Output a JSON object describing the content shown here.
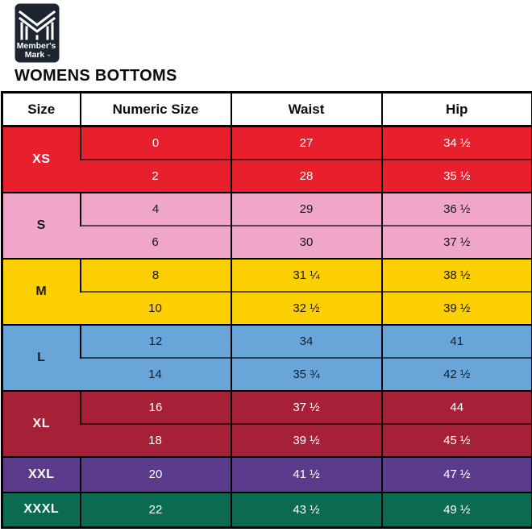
{
  "brand": {
    "name_line1": "Member's",
    "name_line2": "Mark",
    "trademark": "™",
    "logo_bg": "#1c2530",
    "logo_fg": "#ffffff"
  },
  "page_title": "WOMENS BOTTOMS",
  "size_table": {
    "headers": [
      "Size",
      "Numeric Size",
      "Waist",
      "Hip"
    ],
    "header_bg": "#ffffff",
    "border_color": "#000000",
    "groups": [
      {
        "size": "XS",
        "bg": "#e81f2d",
        "fg": "#ffffff",
        "rows": [
          [
            "0",
            "27",
            "34 ½"
          ],
          [
            "2",
            "28",
            "35 ½"
          ]
        ]
      },
      {
        "size": "S",
        "bg": "#efa6c8",
        "fg": "#1a1a1a",
        "rows": [
          [
            "4",
            "29",
            "36 ½"
          ],
          [
            "6",
            "30",
            "37 ½"
          ]
        ]
      },
      {
        "size": "M",
        "bg": "#fccf00",
        "fg": "#1a1a1a",
        "rows": [
          [
            "8",
            "31 ¼",
            "38 ½"
          ],
          [
            "10",
            "32 ½",
            "39 ½"
          ]
        ]
      },
      {
        "size": "L",
        "bg": "#6aa5d9",
        "fg": "#10202e",
        "rows": [
          [
            "12",
            "34",
            "41"
          ],
          [
            "14",
            "35 ¾",
            "42 ½"
          ]
        ]
      },
      {
        "size": "XL",
        "bg": "#a62038",
        "fg": "#ffffff",
        "rows": [
          [
            "16",
            "37 ½",
            "44"
          ],
          [
            "18",
            "39 ½",
            "45 ½"
          ]
        ]
      },
      {
        "size": "XXL",
        "bg": "#5b3b8c",
        "fg": "#ffffff",
        "rows": [
          [
            "20",
            "41 ½",
            "47 ½"
          ]
        ]
      },
      {
        "size": "XXXL",
        "bg": "#0b6a50",
        "fg": "#ffffff",
        "rows": [
          [
            "22",
            "43 ½",
            "49 ½"
          ]
        ]
      }
    ]
  },
  "chart_data": {
    "type": "table",
    "title": "WOMENS BOTTOMS",
    "columns": [
      "Size",
      "Numeric Size",
      "Waist",
      "Hip"
    ],
    "rows": [
      [
        "XS",
        "0",
        "27",
        "34 ½"
      ],
      [
        "XS",
        "2",
        "28",
        "35 ½"
      ],
      [
        "S",
        "4",
        "29",
        "36 ½"
      ],
      [
        "S",
        "6",
        "30",
        "37 ½"
      ],
      [
        "M",
        "8",
        "31 ¼",
        "38 ½"
      ],
      [
        "M",
        "10",
        "32 ½",
        "39 ½"
      ],
      [
        "L",
        "12",
        "34",
        "41"
      ],
      [
        "L",
        "14",
        "35 ¾",
        "42 ½"
      ],
      [
        "XL",
        "16",
        "37 ½",
        "44"
      ],
      [
        "XL",
        "18",
        "39 ½",
        "45 ½"
      ],
      [
        "XXL",
        "20",
        "41 ½",
        "47 ½"
      ],
      [
        "XXXL",
        "22",
        "43 ½",
        "49 ½"
      ]
    ]
  }
}
